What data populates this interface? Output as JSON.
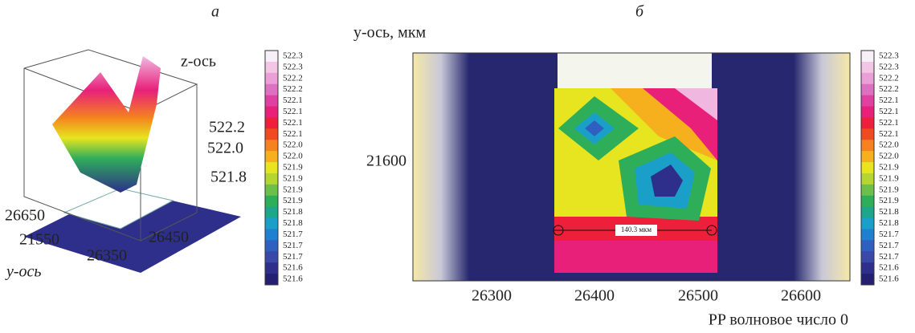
{
  "panel_a": {
    "label": "а",
    "z_axis_label": "z-ось",
    "z_ticks": [
      "522.2",
      "522.0",
      "521.8"
    ],
    "axis_ticks": [
      "26650",
      "21550",
      "26450",
      "26350"
    ],
    "y_axis_label": "y-ось",
    "colorbar": [
      "522.3",
      "522.3",
      "522.2",
      "522.2",
      "522.1",
      "522.1",
      "522.1",
      "522.1",
      "522.0",
      "522.0",
      "521.9",
      "521.9",
      "521.9",
      "521.9",
      "521.8",
      "521.8",
      "521.7",
      "521.7",
      "521.7",
      "521.6",
      "521.6"
    ]
  },
  "panel_b": {
    "label": "б",
    "y_axis_label": "y-ось, мкм",
    "y_ticks": [
      "21600"
    ],
    "x_ticks": [
      "26300",
      "26400",
      "26500",
      "26600"
    ],
    "x_axis_label": "PP волновое число 0",
    "measurement": "140.3 мкм",
    "colorbar": [
      "522.3",
      "522.3",
      "522.2",
      "522.2",
      "522.1",
      "522.1",
      "522.1",
      "522.1",
      "522.0",
      "522.0",
      "521.9",
      "521.9",
      "521.9",
      "521.9",
      "521.8",
      "521.8",
      "521.7",
      "521.7",
      "521.7",
      "521.6",
      "521.6"
    ]
  }
}
